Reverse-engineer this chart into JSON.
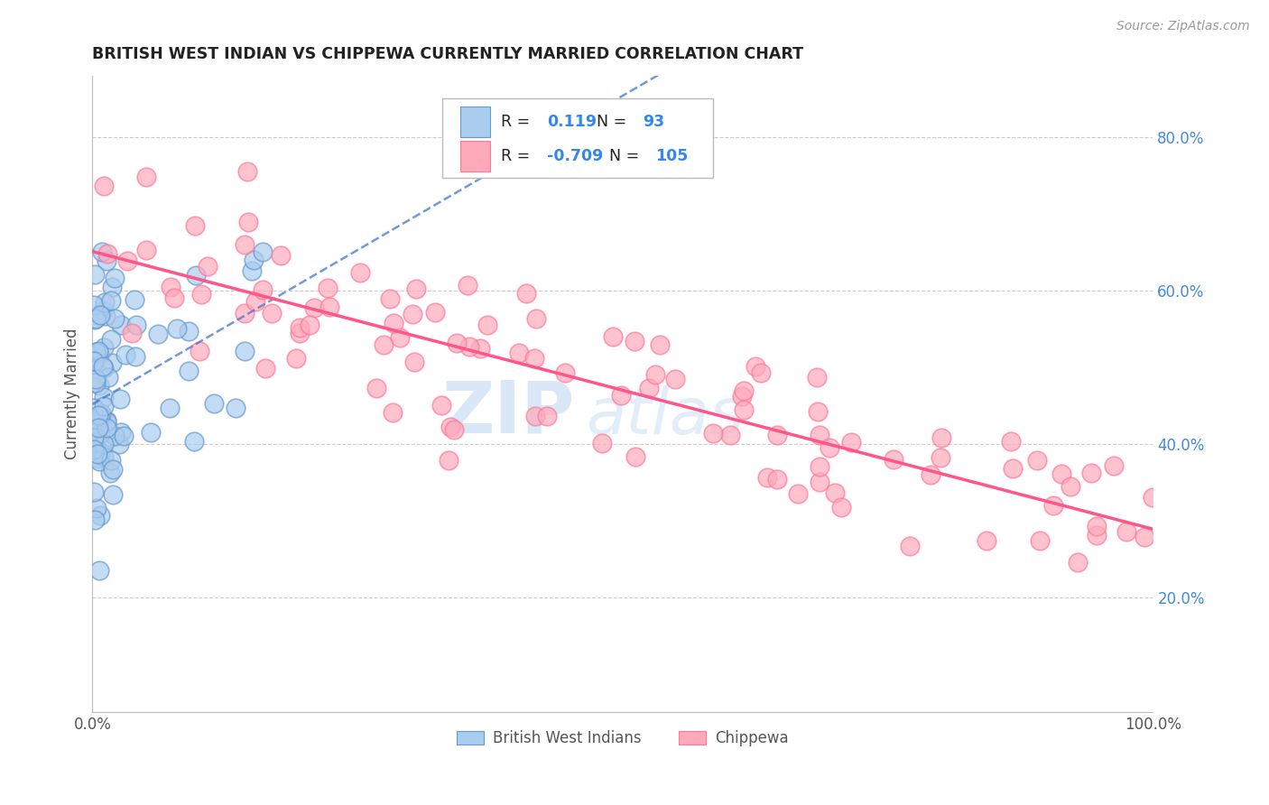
{
  "title": "BRITISH WEST INDIAN VS CHIPPEWA CURRENTLY MARRIED CORRELATION CHART",
  "source_text": "Source: ZipAtlas.com",
  "ylabel": "Currently Married",
  "xlim": [
    0.0,
    1.0
  ],
  "ylim": [
    0.05,
    0.88
  ],
  "blue_R": 0.119,
  "blue_N": 93,
  "pink_R": -0.709,
  "pink_N": 105,
  "blue_color": "#AACCEE",
  "pink_color": "#FFAABB",
  "blue_edge_color": "#6699CC",
  "pink_edge_color": "#FF7799",
  "blue_trend_color": "#4477CC",
  "pink_trend_color": "#FF5588",
  "watermark_zip": "ZIP",
  "watermark_atlas": "atlas",
  "legend_blue_label": "British West Indians",
  "legend_pink_label": "Chippewa",
  "y_ticks": [
    0.2,
    0.4,
    0.6,
    0.8
  ],
  "y_tick_labels": [
    "20.0%",
    "40.0%",
    "60.0%",
    "80.0%"
  ]
}
